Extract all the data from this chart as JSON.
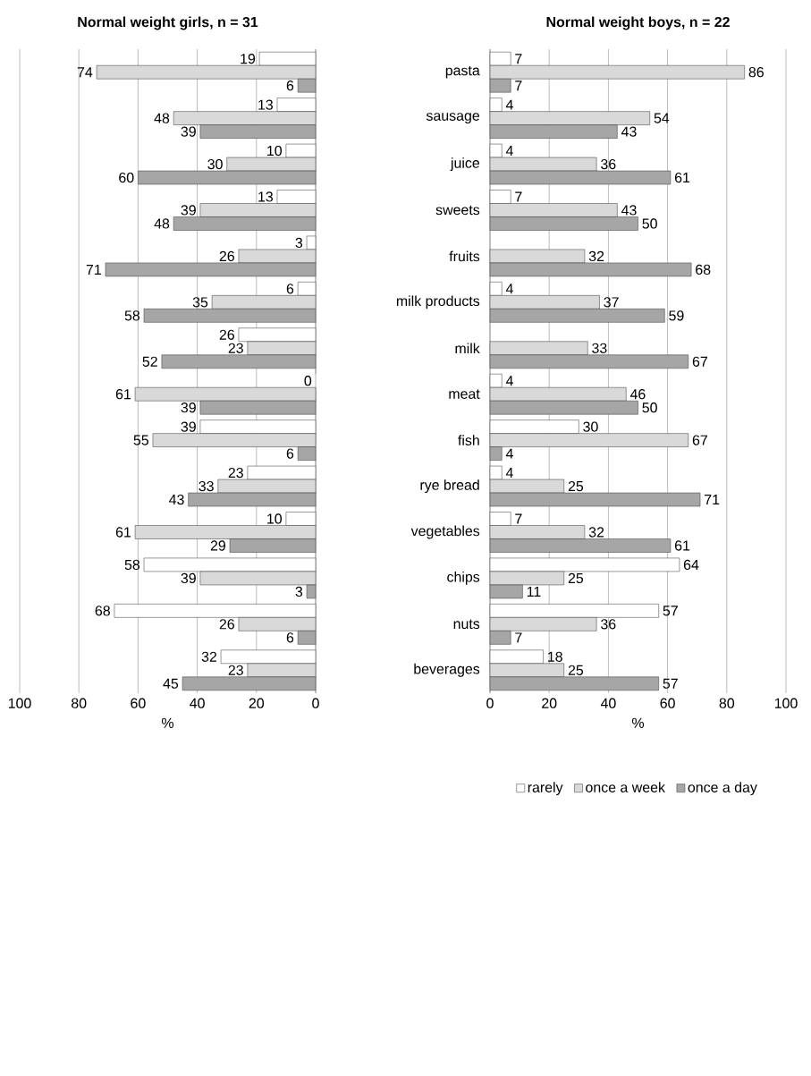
{
  "chart_data": [
    {
      "type": "bar",
      "orientation": "horizontal",
      "title": "Normal weight girls, n = 31",
      "xlabel": "%",
      "categories": [
        null,
        null,
        null,
        null,
        null,
        null,
        null,
        null,
        null,
        null,
        null,
        null,
        null,
        null
      ],
      "tick_labels": "x",
      "xlim": [
        100,
        0
      ],
      "xticks": [
        100,
        80,
        60,
        40,
        20,
        0
      ],
      "grid": "x",
      "data_labels": true,
      "series": [
        {
          "color": "#ffffff",
          "values": [
            19,
            13,
            10,
            13,
            3,
            6,
            26,
            0,
            39,
            23,
            10,
            58,
            68,
            32
          ]
        },
        {
          "color": "#d9d9d9",
          "values": [
            74,
            48,
            30,
            39,
            26,
            35,
            23,
            61,
            55,
            33,
            61,
            39,
            26,
            23
          ]
        },
        {
          "color": "#a6a6a6",
          "values": [
            6,
            39,
            60,
            48,
            71,
            58,
            52,
            39,
            6,
            43,
            29,
            3,
            6,
            45
          ]
        }
      ]
    },
    {
      "type": "bar",
      "orientation": "horizontal",
      "title": "Normal weight boys, n = 22",
      "xlabel": "%",
      "categories": [
        "pasta",
        "sausage",
        "juice",
        "sweets",
        "fruits",
        "milk products",
        "milk",
        "meat",
        "fish",
        "rye bread",
        "vegetables",
        "chips",
        "nuts",
        "beverages"
      ],
      "xlim": [
        0,
        100
      ],
      "xticks": [
        0,
        20,
        40,
        60,
        80,
        100
      ],
      "grid": "x",
      "data_labels": true,
      "legend": "bottom",
      "series": [
        {
          "name": "rarely",
          "color": "#ffffff",
          "values": [
            7,
            4,
            4,
            7,
            null,
            4,
            null,
            4,
            30,
            4,
            7,
            64,
            57,
            18
          ]
        },
        {
          "name": "once a week",
          "color": "#d9d9d9",
          "values": [
            86,
            54,
            36,
            43,
            32,
            37,
            33,
            46,
            67,
            25,
            32,
            25,
            36,
            25
          ]
        },
        {
          "name": "once a day",
          "color": "#a6a6a6",
          "values": [
            7,
            43,
            61,
            50,
            68,
            59,
            67,
            50,
            4,
            71,
            61,
            11,
            7,
            57
          ]
        }
      ]
    }
  ]
}
